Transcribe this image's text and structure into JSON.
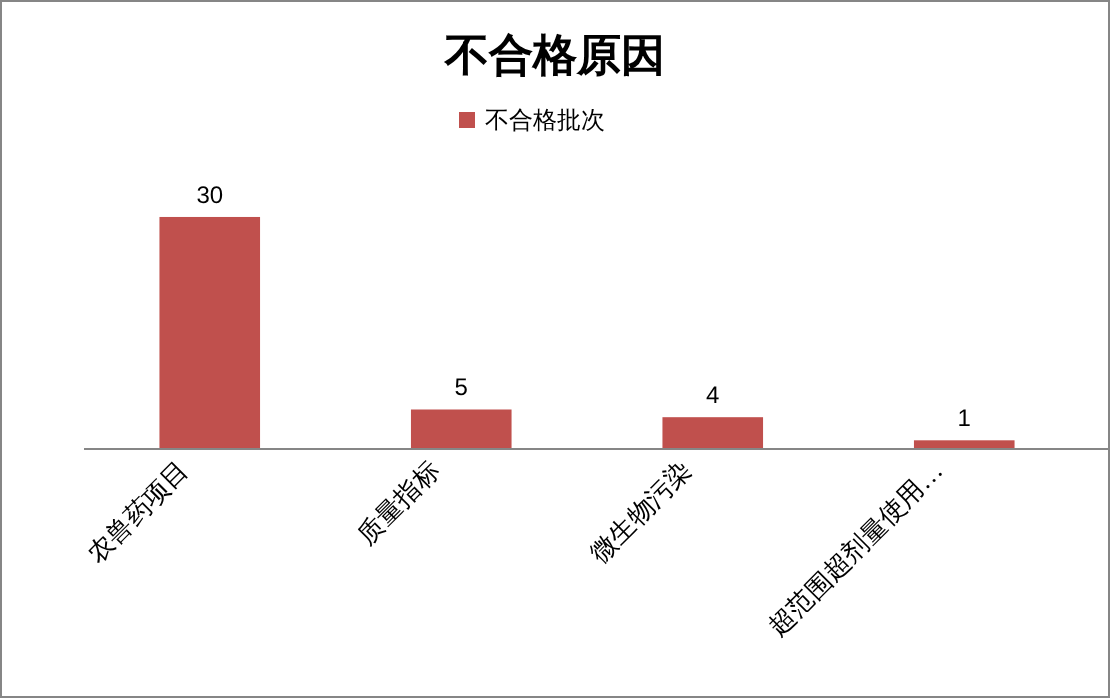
{
  "chart_data": {
    "type": "bar",
    "title": "不合格原因",
    "categories": [
      "农兽药项目",
      "质量指标",
      "微生物污染",
      "超范围超剂量使用…"
    ],
    "series": [
      {
        "name": "不合格批次",
        "color": "#c0504d",
        "values": [
          30,
          5,
          4,
          1
        ]
      }
    ],
    "data_labels": true,
    "legend": "top"
  }
}
